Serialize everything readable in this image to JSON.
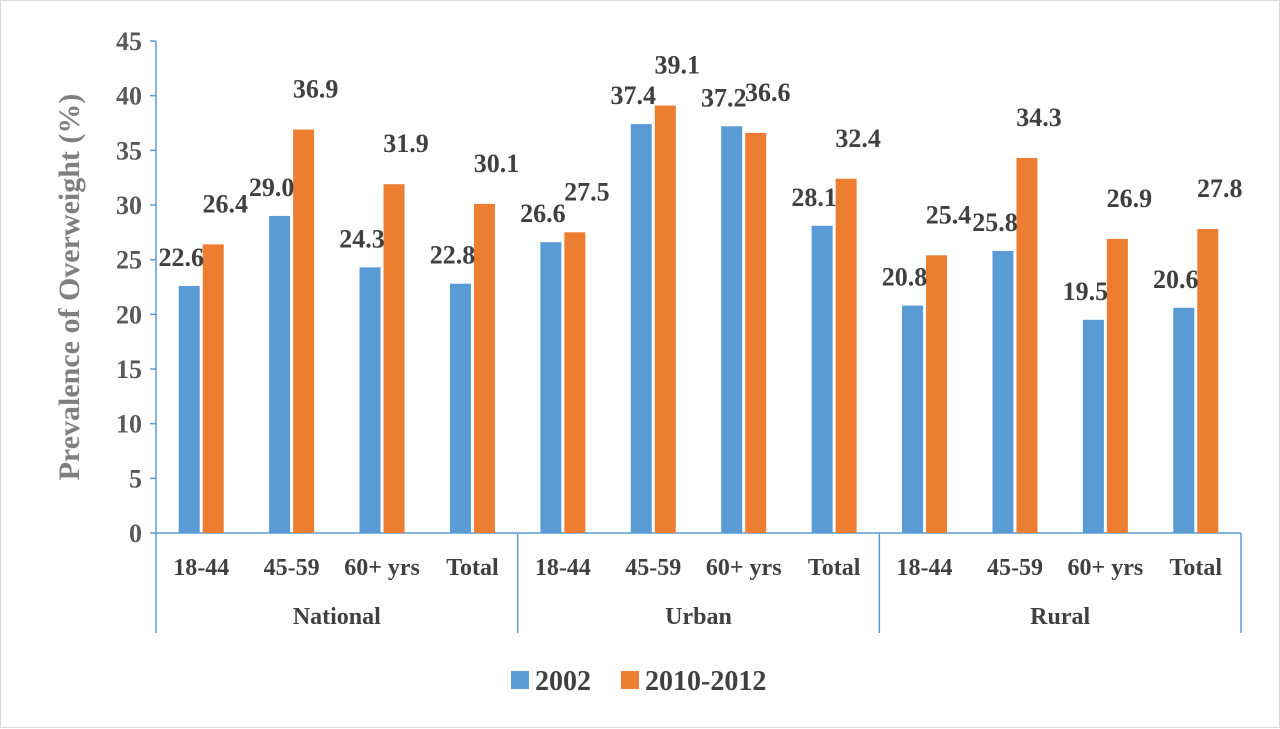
{
  "chart_data": {
    "type": "bar",
    "title": "",
    "ylabel": "Prevalence of Overweight (%)",
    "ylim": [
      0,
      45
    ],
    "yticks": [
      0,
      5,
      10,
      15,
      20,
      25,
      30,
      35,
      40,
      45
    ],
    "groups": [
      {
        "name": "National",
        "categories": [
          "18-44",
          "45-59",
          "60+ yrs",
          "Total"
        ]
      },
      {
        "name": "Urban",
        "categories": [
          "18-44",
          "45-59",
          "60+ yrs",
          "Total"
        ]
      },
      {
        "name": "Rural",
        "categories": [
          "18-44",
          "45-59",
          "60+ yrs",
          "Total"
        ]
      }
    ],
    "series": [
      {
        "name": "2002",
        "color": "#5B9BD5",
        "values": [
          22.6,
          29.0,
          24.3,
          22.8,
          26.6,
          37.4,
          37.2,
          28.1,
          20.8,
          25.8,
          19.5,
          20.6
        ],
        "labels": [
          "22.6",
          "29.0",
          "24.3",
          "22.8",
          "26.6",
          "37.4",
          "37.2",
          "28.1",
          "20.8",
          "25.8",
          "19.5",
          "20.6"
        ]
      },
      {
        "name": "2010-2012",
        "color": "#ED7D31",
        "values": [
          26.4,
          36.9,
          31.9,
          30.1,
          27.5,
          39.1,
          36.6,
          32.4,
          25.4,
          34.3,
          26.9,
          27.8
        ],
        "labels": [
          "26.4",
          "36.9",
          "31.9",
          "30.1",
          "27.5",
          "39.1",
          "36.6",
          "32.4",
          "25.4",
          "34.3",
          "26.9",
          "27.8"
        ]
      }
    ],
    "grid": false,
    "legend": "bottom",
    "axis_color": "#5B9BD5"
  }
}
